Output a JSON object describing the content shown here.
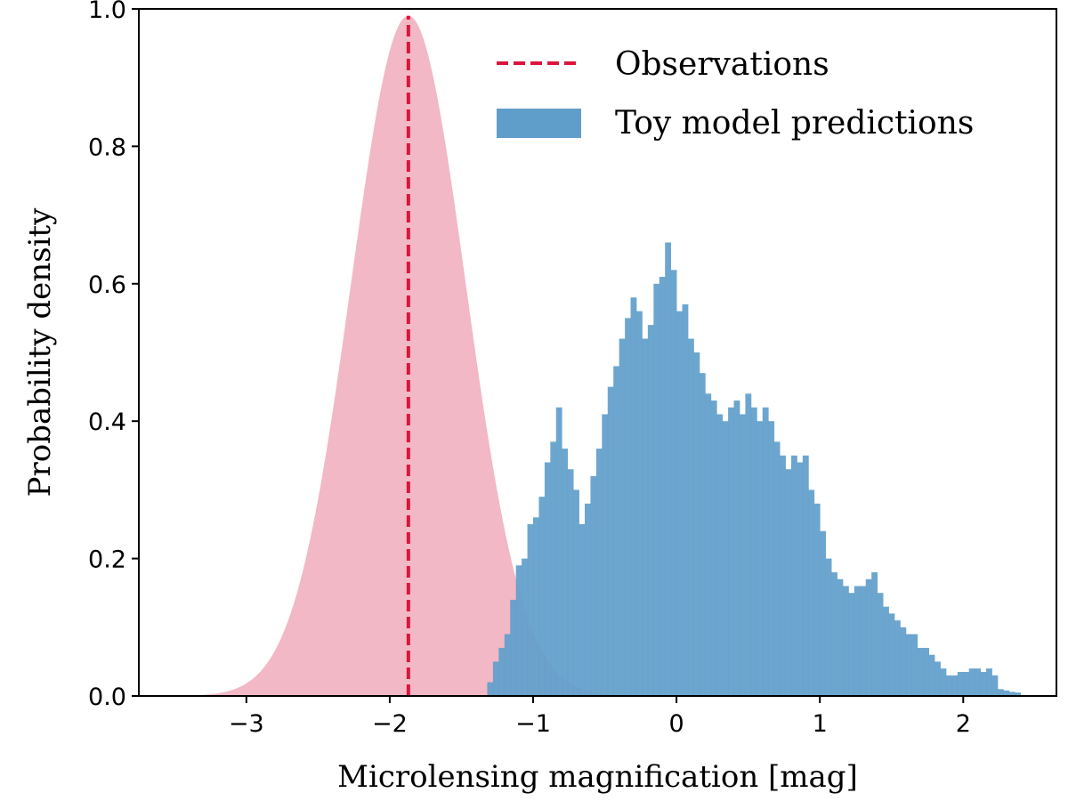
{
  "chart_data": {
    "type": "histogram",
    "xlabel": "Microlensing magnification [mag]",
    "ylabel": "Probability density",
    "xlim": [
      -3.75,
      2.65
    ],
    "ylim": [
      0.0,
      1.0
    ],
    "x_ticks": [
      -3,
      -2,
      -1,
      0,
      1,
      2
    ],
    "x_tick_labels": [
      "−3",
      "−2",
      "−1",
      "0",
      "1",
      "2"
    ],
    "y_ticks": [
      0.0,
      0.2,
      0.4,
      0.6,
      0.8,
      1.0
    ],
    "y_tick_labels": [
      "0.0",
      "0.2",
      "0.4",
      "0.6",
      "0.8",
      "1.0"
    ],
    "legend": {
      "position": "top-right",
      "entries": [
        {
          "label": "Observations",
          "style": "dashed-line",
          "color": "#dc143c"
        },
        {
          "label": "Toy model predictions",
          "style": "patch",
          "color": "#5f9ecb"
        }
      ]
    },
    "observations": {
      "name": "Observations",
      "distribution": "gaussian",
      "mean": -1.87,
      "sigma": 0.4,
      "peak": 0.99,
      "fill_color": "#f2b8c5",
      "line_color": "#dc143c"
    },
    "histogram": {
      "name": "Toy model predictions",
      "color": "#5f9ecb",
      "bin_start": -1.32,
      "bin_width": 0.04,
      "values": [
        0.02,
        0.05,
        0.07,
        0.09,
        0.14,
        0.19,
        0.2,
        0.25,
        0.26,
        0.29,
        0.34,
        0.37,
        0.42,
        0.36,
        0.33,
        0.3,
        0.25,
        0.28,
        0.32,
        0.36,
        0.41,
        0.45,
        0.48,
        0.52,
        0.55,
        0.58,
        0.56,
        0.52,
        0.54,
        0.6,
        0.61,
        0.66,
        0.62,
        0.56,
        0.57,
        0.52,
        0.5,
        0.47,
        0.44,
        0.43,
        0.41,
        0.4,
        0.42,
        0.43,
        0.41,
        0.44,
        0.42,
        0.4,
        0.42,
        0.4,
        0.37,
        0.35,
        0.33,
        0.35,
        0.34,
        0.35,
        0.3,
        0.28,
        0.24,
        0.2,
        0.18,
        0.17,
        0.16,
        0.15,
        0.16,
        0.16,
        0.17,
        0.18,
        0.15,
        0.13,
        0.12,
        0.11,
        0.1,
        0.09,
        0.09,
        0.07,
        0.07,
        0.06,
        0.05,
        0.04,
        0.03,
        0.03,
        0.035,
        0.035,
        0.04,
        0.04,
        0.035,
        0.04,
        0.03,
        0.01,
        0.008,
        0.006,
        0.005
      ]
    }
  }
}
